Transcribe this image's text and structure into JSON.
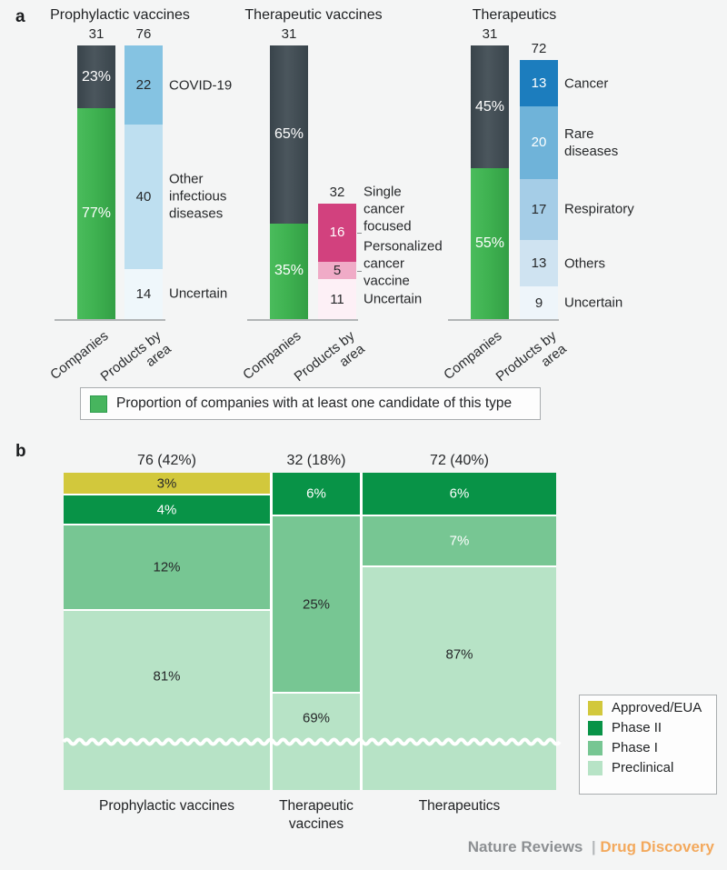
{
  "figure": {
    "panel_a_label": "a",
    "panel_b_label": "b",
    "footer": {
      "brand": "Nature Reviews",
      "separator": "|",
      "journal": "Drug Discovery"
    }
  },
  "colors": {
    "background": "#f4f5f5",
    "dark_slate": "#424c52",
    "company_green": "#3fb251",
    "axis_line": "#b2b5b7",
    "approved": "#d2c83c",
    "phase2": "#089347",
    "phase1": "#77c693",
    "preclinical": "#b7e3c6",
    "footer_brand": "#8d9093",
    "footer_separator": "#b5b8ba",
    "footer_journal": "#f3a95d"
  },
  "chart_data": [
    {
      "type": "bar",
      "panel": "a",
      "title": "Companies and products by area",
      "products_scale_max": 76,
      "legend": "Proportion of companies with at least one candidate of this type",
      "groups": [
        {
          "title": "Prophylactic vaccines",
          "companies": {
            "x_label": "Companies",
            "total": 31,
            "segments": [
              {
                "pct": 23,
                "color": "dark",
                "text_light": true
              },
              {
                "pct": 77,
                "color": "green",
                "text_light": true
              }
            ]
          },
          "products": {
            "x_label": "Products by\narea",
            "total": 76,
            "segments": [
              {
                "value": 22,
                "label": "COVID-19",
                "color": "#85c3e2",
                "text_light": false
              },
              {
                "value": 40,
                "label": "Other\ninfectious\ndiseases",
                "color": "#bedff0",
                "text_light": false
              },
              {
                "value": 14,
                "label": "Uncertain",
                "color": "#eff7fb",
                "text_light": false
              }
            ]
          }
        },
        {
          "title": "Therapeutic vaccines",
          "companies": {
            "x_label": "Companies",
            "total": 31,
            "segments": [
              {
                "pct": 65,
                "color": "dark",
                "text_light": true
              },
              {
                "pct": 35,
                "color": "green",
                "text_light": true
              }
            ]
          },
          "products": {
            "x_label": "Products by\narea",
            "total": 32,
            "segments": [
              {
                "value": 16,
                "label": "Single\ncancer\nfocused",
                "color": "#d2417e",
                "text_light": true,
                "leader": true
              },
              {
                "value": 5,
                "label": "Personalized\ncancer\nvaccine",
                "color": "#f0abc7",
                "text_light": false,
                "leader": true
              },
              {
                "value": 11,
                "label": "Uncertain",
                "color": "#fdf0f6",
                "text_light": false
              }
            ]
          }
        },
        {
          "title": "Therapeutics",
          "companies": {
            "x_label": "Companies",
            "total": 31,
            "segments": [
              {
                "pct": 45,
                "color": "dark",
                "text_light": true
              },
              {
                "pct": 55,
                "color": "green",
                "text_light": true
              }
            ]
          },
          "products": {
            "x_label": "Products by\narea",
            "total": 72,
            "segments": [
              {
                "value": 13,
                "label": "Cancer",
                "color": "#1c7dbe",
                "text_light": true
              },
              {
                "value": 20,
                "label": "Rare\ndiseases",
                "color": "#6fb3d9",
                "text_light": true
              },
              {
                "value": 17,
                "label": "Respiratory",
                "color": "#a5cde7",
                "text_light": false
              },
              {
                "value": 13,
                "label": "Others",
                "color": "#cfe3f1",
                "text_light": false
              },
              {
                "value": 9,
                "label": "Uncertain",
                "color": "#eef5fa",
                "text_light": false
              }
            ]
          }
        }
      ]
    },
    {
      "type": "bar",
      "panel": "b",
      "title": "Pipeline by development phase",
      "columns": [
        {
          "header": "76 (42%)",
          "label": "Prophylactic vaccines",
          "share_pct": 42,
          "segments": [
            {
              "pct": 3,
              "phase": "approved",
              "text_light": false
            },
            {
              "pct": 4,
              "phase": "phase2",
              "text_light": true
            },
            {
              "pct": 12,
              "phase": "phase1",
              "text_light": false
            },
            {
              "pct": 81,
              "phase": "preclinical",
              "text_light": false
            }
          ]
        },
        {
          "header": "32 (18%)",
          "label": "Therapeutic\nvaccines",
          "share_pct": 18,
          "segments": [
            {
              "pct": 6,
              "phase": "phase2",
              "text_light": true
            },
            {
              "pct": 25,
              "phase": "phase1",
              "text_light": false
            },
            {
              "pct": 69,
              "phase": "preclinical",
              "text_light": false
            }
          ]
        },
        {
          "header": "72 (40%)",
          "label": "Therapeutics",
          "share_pct": 40,
          "segments": [
            {
              "pct": 6,
              "phase": "phase2",
              "text_light": true
            },
            {
              "pct": 7,
              "phase": "phase1",
              "text_light": true
            },
            {
              "pct": 87,
              "phase": "preclinical",
              "text_light": false
            }
          ]
        }
      ],
      "legend": [
        {
          "label": "Approved/EUA",
          "phase": "approved"
        },
        {
          "label": "Phase II",
          "phase": "phase2"
        },
        {
          "label": "Phase I",
          "phase": "phase1"
        },
        {
          "label": "Preclinical",
          "phase": "preclinical"
        }
      ]
    }
  ]
}
